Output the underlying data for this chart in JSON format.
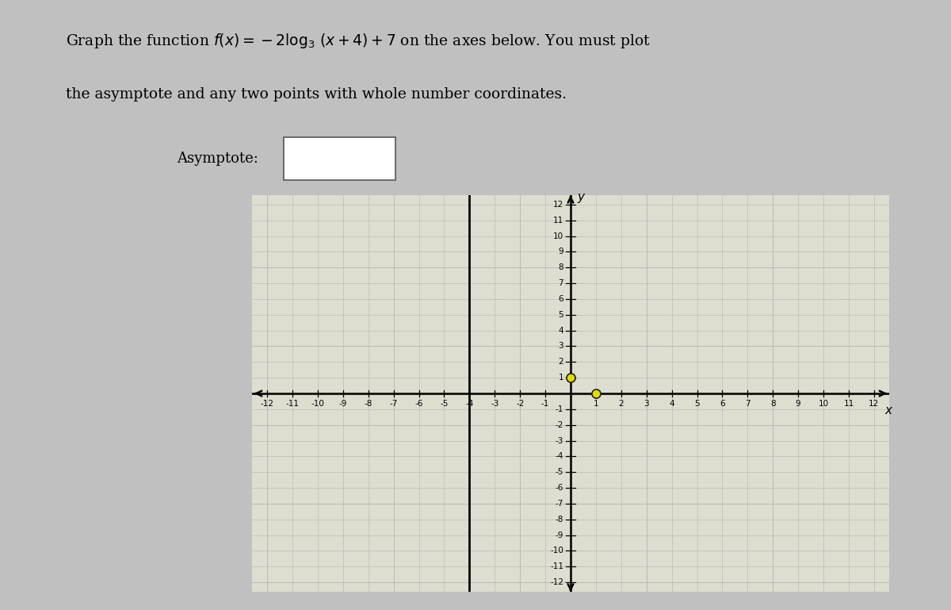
{
  "xmin": -12,
  "xmax": 12,
  "ymin": -12,
  "ymax": 12,
  "xticks": [
    -12,
    -11,
    -10,
    -9,
    -8,
    -7,
    -6,
    -5,
    -4,
    -3,
    -2,
    -1,
    1,
    2,
    3,
    4,
    5,
    6,
    7,
    8,
    9,
    10,
    11,
    12
  ],
  "yticks": [
    -12,
    -11,
    -10,
    -9,
    -8,
    -7,
    -6,
    -5,
    -4,
    -3,
    -2,
    -1,
    1,
    2,
    3,
    4,
    5,
    6,
    7,
    8,
    9,
    10,
    11,
    12
  ],
  "asymptote_x": -4,
  "point1": [
    0,
    1
  ],
  "point2": [
    1,
    0
  ],
  "grid_color": "#bbbbbb",
  "axis_color": "#111111",
  "graph_bg_color": "#deded0",
  "page_bg_color": "#c8c8c8",
  "inner_bg_color": "#e8e8de",
  "point_color": "#dddd00",
  "point_edge_color": "#222222",
  "tick_label_fontsize": 7.5,
  "axis_label_fontsize": 11
}
